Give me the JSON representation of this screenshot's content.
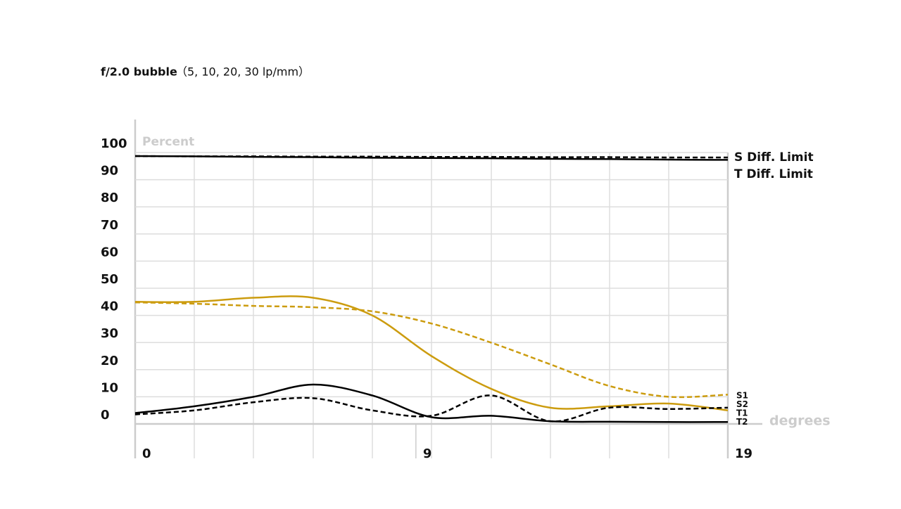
{
  "chart_data": {
    "type": "line",
    "title": "f/2.0 bubble",
    "subtitle": "（5, 10, 20, 30 lp/mm）",
    "y_label": "Percent",
    "x_label": "degrees",
    "x": [
      0,
      1.9,
      3.8,
      5.7,
      7.6,
      9.5,
      11.4,
      13.3,
      15.2,
      17.1,
      19
    ],
    "series": [
      {
        "name": "S Diff. Limit",
        "color": "#000000",
        "dashed": true,
        "values": [
          98.7,
          98.6,
          98.6,
          98.5,
          98.5,
          98.4,
          98.4,
          98.3,
          98.3,
          98.2,
          98.2
        ]
      },
      {
        "name": "T Diff. Limit",
        "color": "#000000",
        "dashed": false,
        "values": [
          98.7,
          98.6,
          98.4,
          98.3,
          98.1,
          98.0,
          97.9,
          97.7,
          97.6,
          97.4,
          97.3
        ]
      },
      {
        "name": "S1",
        "color": "#cc9c0f",
        "dashed": true,
        "values": [
          44.8,
          44.3,
          43.5,
          43,
          41.5,
          37,
          30,
          22,
          14,
          10,
          10.8
        ]
      },
      {
        "name": "S2",
        "color": "#cc9c0f",
        "dashed": false,
        "values": [
          45,
          45,
          46.5,
          46.5,
          40,
          25,
          13,
          6,
          6.5,
          7.5,
          5
        ]
      },
      {
        "name": "T1",
        "color": "#000000",
        "dashed": true,
        "values": [
          3.5,
          5,
          8,
          9.5,
          5,
          3,
          10.5,
          1,
          6,
          5.5,
          6
        ]
      },
      {
        "name": "T2",
        "color": "#000000",
        "dashed": false,
        "values": [
          4,
          6.5,
          10,
          14.5,
          10.5,
          2.5,
          3,
          1,
          0.8,
          0.7,
          0.7
        ]
      }
    ],
    "xlim": [
      0,
      19
    ],
    "xticks": [
      0,
      9,
      19
    ],
    "ylim": [
      0,
      100
    ],
    "yticks": [
      0,
      10,
      20,
      30,
      40,
      50,
      60,
      70,
      80,
      90,
      100
    ],
    "grid": true
  }
}
